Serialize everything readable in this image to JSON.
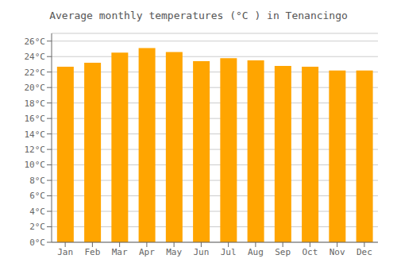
{
  "chart_data": {
    "type": "bar",
    "title": "Average monthly temperatures (°C ) in Tenancingo",
    "categories": [
      "Jan",
      "Feb",
      "Mar",
      "Apr",
      "May",
      "Jun",
      "Jul",
      "Aug",
      "Sep",
      "Oct",
      "Nov",
      "Dec"
    ],
    "values": [
      22.7,
      23.2,
      24.5,
      25.1,
      24.6,
      23.4,
      23.8,
      23.5,
      22.8,
      22.7,
      22.2,
      22.2
    ],
    "color": "#FFA500",
    "ylim": [
      0,
      27
    ],
    "yticks": [
      {
        "value": 0,
        "label": "0°C"
      },
      {
        "value": 2,
        "label": "2°C"
      },
      {
        "value": 4,
        "label": "4°C"
      },
      {
        "value": 6,
        "label": "6°C"
      },
      {
        "value": 8,
        "label": "8°C"
      },
      {
        "value": 10,
        "label": "10°C"
      },
      {
        "value": 12,
        "label": "12°C"
      },
      {
        "value": 14,
        "label": "14°C"
      },
      {
        "value": 16,
        "label": "16°C"
      },
      {
        "value": 18,
        "label": "18°C"
      },
      {
        "value": 20,
        "label": "20°C"
      },
      {
        "value": 22,
        "label": "22°C"
      },
      {
        "value": 24,
        "label": "24°C"
      },
      {
        "value": 26,
        "label": "26°C"
      }
    ],
    "grid": true
  }
}
